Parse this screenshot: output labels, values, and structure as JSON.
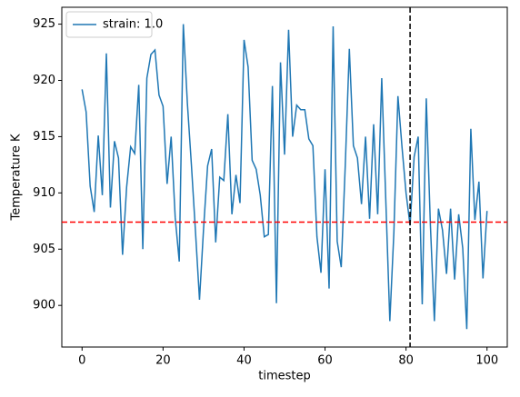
{
  "chart_data": {
    "type": "line",
    "xlabel": "timestep",
    "ylabel": "Temperature K",
    "x": [
      0,
      1,
      2,
      3,
      4,
      5,
      6,
      7,
      8,
      9,
      10,
      11,
      12,
      13,
      14,
      15,
      16,
      17,
      18,
      19,
      20,
      21,
      22,
      23,
      24,
      25,
      26,
      27,
      28,
      29,
      30,
      31,
      32,
      33,
      34,
      35,
      36,
      37,
      38,
      39,
      40,
      41,
      42,
      43,
      44,
      45,
      46,
      47,
      48,
      49,
      50,
      51,
      52,
      53,
      54,
      55,
      56,
      57,
      58,
      59,
      60,
      61,
      62,
      63,
      64,
      65,
      66,
      67,
      68,
      69,
      70,
      71,
      72,
      73,
      74,
      75,
      76,
      77,
      78,
      79,
      80,
      81,
      82,
      83,
      84,
      85,
      86,
      87,
      88,
      89,
      90,
      91,
      92,
      93,
      94,
      95,
      96,
      97,
      98,
      99,
      100
    ],
    "series": [
      {
        "name": "strain: 1.0",
        "color": "#1f77b4",
        "values": [
          919.2,
          917.2,
          910.6,
          908.3,
          915.1,
          909.8,
          922.4,
          908.7,
          914.6,
          913.1,
          904.5,
          910.5,
          914.1,
          913.5,
          919.6,
          905.0,
          920.2,
          922.3,
          922.7,
          918.7,
          917.7,
          910.8,
          915.0,
          907.8,
          903.9,
          925.0,
          918.0,
          912.5,
          906.6,
          900.5,
          906.8,
          912.4,
          913.9,
          905.6,
          911.4,
          911.1,
          917.0,
          908.1,
          911.6,
          909.1,
          923.6,
          921.2,
          912.9,
          912.1,
          909.8,
          906.1,
          906.3,
          919.5,
          900.2,
          921.6,
          913.4,
          924.5,
          915.0,
          917.8,
          917.4,
          917.4,
          914.8,
          914.2,
          906.1,
          902.9,
          912.1,
          901.5,
          924.8,
          905.7,
          903.4,
          912.5,
          922.8,
          914.2,
          913.1,
          909.0,
          915.0,
          907.7,
          916.1,
          908.1,
          920.2,
          909.4,
          898.6,
          906.5,
          918.6,
          914.1,
          910.0,
          907.1,
          913.2,
          915.0,
          900.1,
          918.4,
          907.3,
          898.6,
          908.6,
          906.7,
          902.8,
          908.6,
          902.3,
          908.1,
          905.1,
          897.9,
          915.7,
          907.6,
          911.0,
          902.4,
          908.4
        ]
      }
    ],
    "hlines": [
      {
        "value": 907.4,
        "color": "#ff0000"
      }
    ],
    "vlines": [
      {
        "value": 81,
        "color": "#000000"
      }
    ],
    "xlim": [
      -5,
      105
    ],
    "ylim": [
      896.3,
      926.5
    ],
    "xticks": [
      0,
      20,
      40,
      60,
      80,
      100
    ],
    "yticks": [
      900,
      905,
      910,
      915,
      920,
      925
    ],
    "legend": "upper left"
  }
}
